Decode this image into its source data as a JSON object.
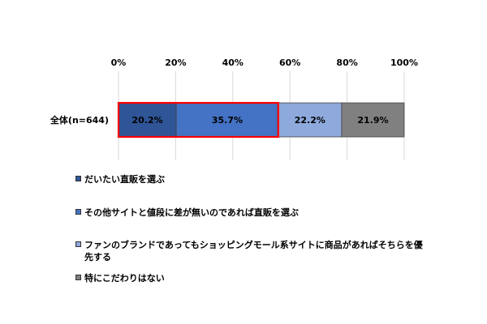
{
  "chart_data": {
    "type": "bar",
    "orientation": "horizontal",
    "stacked": true,
    "categories": [
      "全体(n=644)"
    ],
    "series": [
      {
        "name": "だいたい直販を選ぶ",
        "values": [
          20.2
        ],
        "color": "#2F5597",
        "label_color": "#000000"
      },
      {
        "name": "その他サイトと値段に差が無いのであれば直販を選ぶ",
        "values": [
          35.7
        ],
        "color": "#4472C4",
        "label_color": "#000000"
      },
      {
        "name": "ファンのブランドであってもショッピングモール系サイトに商品があればそちらを優先する",
        "values": [
          22.2
        ],
        "color": "#8EA9DB",
        "label_color": "#000000"
      },
      {
        "name": "特にこだわりはない",
        "values": [
          21.9
        ],
        "color": "#808080",
        "label_color": "#000000"
      }
    ],
    "data_labels": [
      "20.2%",
      "35.7%",
      "22.2%",
      "21.9%"
    ],
    "x_ticks": [
      "0%",
      "20%",
      "40%",
      "60%",
      "80%",
      "100%"
    ],
    "xlim": [
      0,
      100
    ],
    "grid": true,
    "axis_position": "top",
    "legend_position": "bottom",
    "highlight": {
      "series": [
        0,
        1
      ],
      "color": "#FF0000"
    }
  }
}
